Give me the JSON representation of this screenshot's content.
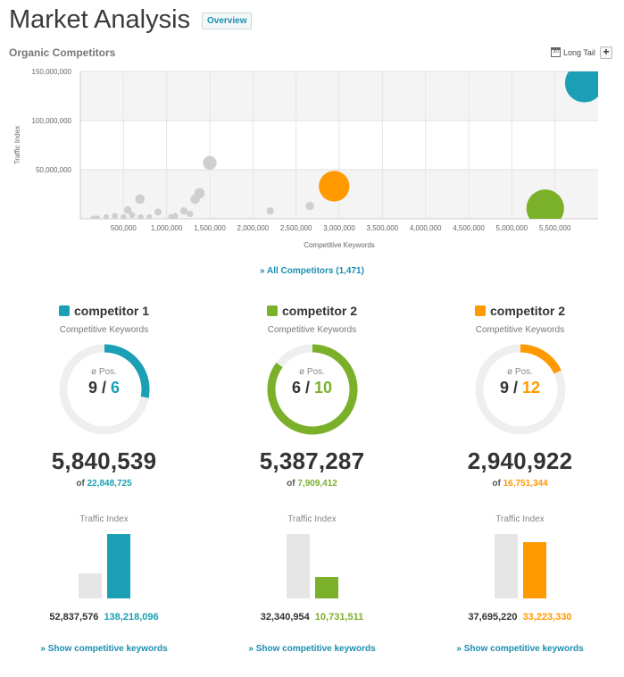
{
  "header": {
    "title": "Market Analysis",
    "overview_label": "Overview"
  },
  "section_title": "Organic Competitors",
  "controls": {
    "long_tail_label": "Long Tail",
    "calendar_label": "30",
    "add_label": "+"
  },
  "all_competitors_link": "» All Competitors (1,471)",
  "chart_data": {
    "type": "scatter",
    "title": "",
    "xlabel": "Competitive Keywords",
    "ylabel": "Traffic Index",
    "xlim": [
      0,
      6000000
    ],
    "ylim": [
      0,
      150000000
    ],
    "x_ticks": [
      "500,000",
      "1,000,000",
      "1,500,000",
      "2,000,000",
      "2,500,000",
      "3,000,000",
      "3,500,000",
      "4,000,000",
      "4,500,000",
      "5,000,000",
      "5,500,000"
    ],
    "x_tick_values": [
      500000,
      1000000,
      1500000,
      2000000,
      2500000,
      3000000,
      3500000,
      4000000,
      4500000,
      5000000,
      5500000
    ],
    "y_ticks": [
      "50,000,000",
      "100,000,000",
      "150,000,000"
    ],
    "y_tick_values": [
      50000000,
      100000000,
      150000000
    ],
    "highlighted": [
      {
        "name": "competitor 1",
        "x": 5840539,
        "y": 138218096,
        "color": "#1a9fb5"
      },
      {
        "name": "competitor 2",
        "x": 5387287,
        "y": 10731511,
        "color": "#7ab02a"
      },
      {
        "name": "competitor 2",
        "x": 2940922,
        "y": 33223330,
        "color": "#ff9900"
      }
    ],
    "others": [
      {
        "x": 1500000,
        "y": 57000000
      },
      {
        "x": 1380000,
        "y": 26000000
      },
      {
        "x": 1330000,
        "y": 20000000
      },
      {
        "x": 1200000,
        "y": 8000000
      },
      {
        "x": 1270000,
        "y": 5000000
      },
      {
        "x": 2200000,
        "y": 8000000
      },
      {
        "x": 2660000,
        "y": 13000000
      },
      {
        "x": 690000,
        "y": 20000000
      },
      {
        "x": 900000,
        "y": 7000000
      },
      {
        "x": 600000,
        "y": 4000000
      },
      {
        "x": 500000,
        "y": 2000000
      },
      {
        "x": 300000,
        "y": 2000000
      },
      {
        "x": 400000,
        "y": 3000000
      },
      {
        "x": 700000,
        "y": 2000000
      },
      {
        "x": 800000,
        "y": 2000000
      },
      {
        "x": 1050000,
        "y": 2000000
      },
      {
        "x": 200000,
        "y": 1000000
      },
      {
        "x": 550000,
        "y": 9000000
      },
      {
        "x": 150000,
        "y": 1000000
      },
      {
        "x": 1100000,
        "y": 3000000
      }
    ]
  },
  "competitors": [
    {
      "name": "competitor 1",
      "color": "#1a9fb5",
      "ck_label": "Competitive Keywords",
      "pos_label": "ø Pos.",
      "pos_own": "9",
      "pos_sep": " / ",
      "pos_comp": "6",
      "pos_fraction": 0.28,
      "keywords": "5,840,539",
      "of_label": "of ",
      "of_total": "22,848,725",
      "traffic_label": "Traffic Index",
      "traffic_own": "52,837,576",
      "traffic_comp": "138,218,096",
      "traffic_own_value": 52837576,
      "traffic_comp_value": 138218096,
      "show_link": "» Show competitive keywords"
    },
    {
      "name": "competitor 2",
      "color": "#7ab02a",
      "ck_label": "Competitive Keywords",
      "pos_label": "ø Pos.",
      "pos_own": "6",
      "pos_sep": " / ",
      "pos_comp": "10",
      "pos_fraction": 0.85,
      "keywords": "5,387,287",
      "of_label": "of ",
      "of_total": "7,909,412",
      "traffic_label": "Traffic Index",
      "traffic_own": "32,340,954",
      "traffic_comp": "10,731,511",
      "traffic_own_value": 32340954,
      "traffic_comp_value": 10731511,
      "show_link": "» Show competitive keywords"
    },
    {
      "name": "competitor 2",
      "color": "#ff9900",
      "ck_label": "Competitive Keywords",
      "pos_label": "ø Pos.",
      "pos_own": "9",
      "pos_sep": " / ",
      "pos_comp": "12",
      "pos_fraction": 0.18,
      "keywords": "2,940,922",
      "of_label": "of ",
      "of_total": "16,751,344",
      "traffic_label": "Traffic Index",
      "traffic_own": "37,695,220",
      "traffic_comp": "33,223,330",
      "traffic_own_value": 37695220,
      "traffic_comp_value": 33223330,
      "show_link": "» Show competitive keywords"
    }
  ]
}
